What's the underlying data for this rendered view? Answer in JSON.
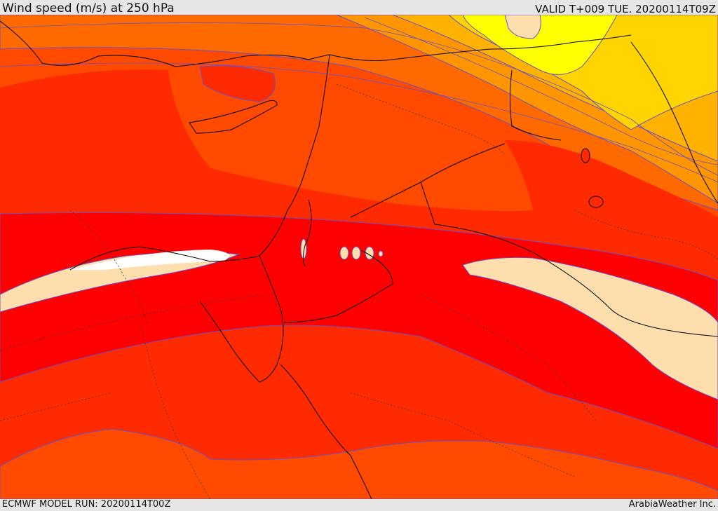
{
  "header": {
    "title": "Wind speed (m/s) at 250 hPa",
    "valid": "VALID T+009 TUE. 20200114T09Z"
  },
  "footer": {
    "model_run": "ECMWF MODEL RUN: 20200114T00Z",
    "credit": "ArabiaWeather Inc."
  },
  "palette": {
    "band_orange_light": "#ff7a00",
    "band_orange": "#ff4a00",
    "band_red_orange": "#ff2400",
    "band_red": "#ff0000",
    "band_peach": "#ffdead",
    "band_amber": "#ffb300",
    "band_yellow": "#ffd400",
    "band_bright_yellow": "#ffff00",
    "contour_line": "#6a4fc8",
    "border_line": "#000000"
  }
}
